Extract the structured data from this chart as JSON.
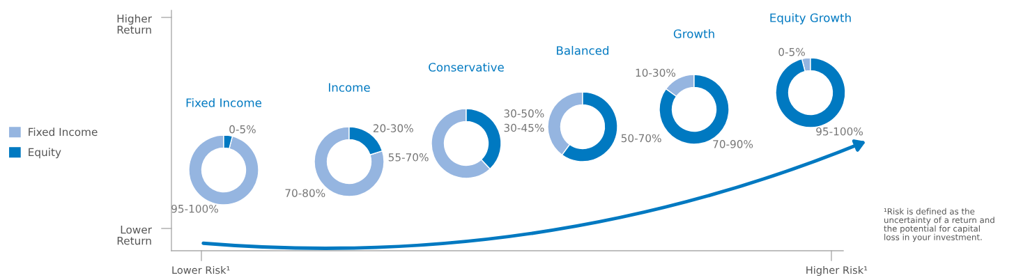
{
  "chart_data": [
    {
      "type": "other",
      "annotations": [
        "Higher\nReturn",
        "Lower\nReturn",
        "Lower Risk¹",
        "Higher Risk¹",
        "¹Risk is defined as the\nuncertainty of a return and\nthe potential for capital\nloss in your investment."
      ]
    },
    {
      "type": "donut",
      "title": "Fixed Income",
      "categories": [
        "Fixed Income",
        "Equity"
      ],
      "values": [
        96,
        4
      ],
      "colors": [
        "#95b5e0",
        "#0079c1"
      ],
      "annotations": [
        "95-100%",
        "0-5%"
      ],
      "legend": "left"
    },
    {
      "type": "donut",
      "title": "Income",
      "categories": [
        null,
        null
      ],
      "values": [
        80,
        20
      ],
      "colors": [
        "#95b5e0",
        "#0079c1"
      ],
      "annotations": [
        "70-80%",
        "20-30%"
      ]
    },
    {
      "type": "donut",
      "title": "Conservative",
      "categories": [
        null,
        null
      ],
      "values": [
        62,
        38
      ],
      "colors": [
        "#95b5e0",
        "#0079c1"
      ],
      "annotations": [
        "55-70%",
        "30-45%"
      ]
    },
    {
      "type": "donut",
      "title": "Balanced",
      "categories": [
        null,
        null
      ],
      "values": [
        40,
        60
      ],
      "colors": [
        "#95b5e0",
        "#0079c1"
      ],
      "annotations": [
        "30-50%",
        "50-70%"
      ]
    },
    {
      "type": "donut",
      "title": "Growth",
      "categories": [
        null,
        null
      ],
      "values": [
        15,
        85
      ],
      "colors": [
        "#95b5e0",
        "#0079c1"
      ],
      "annotations": [
        "10-30%",
        "70-90%"
      ]
    },
    {
      "type": "donut",
      "title": "Equity Growth",
      "categories": [
        null,
        null
      ],
      "values": [
        4,
        96
      ],
      "colors": [
        "#95b5e0",
        "#0079c1"
      ],
      "annotations": [
        "0-5%",
        "95-100%"
      ]
    }
  ]
}
